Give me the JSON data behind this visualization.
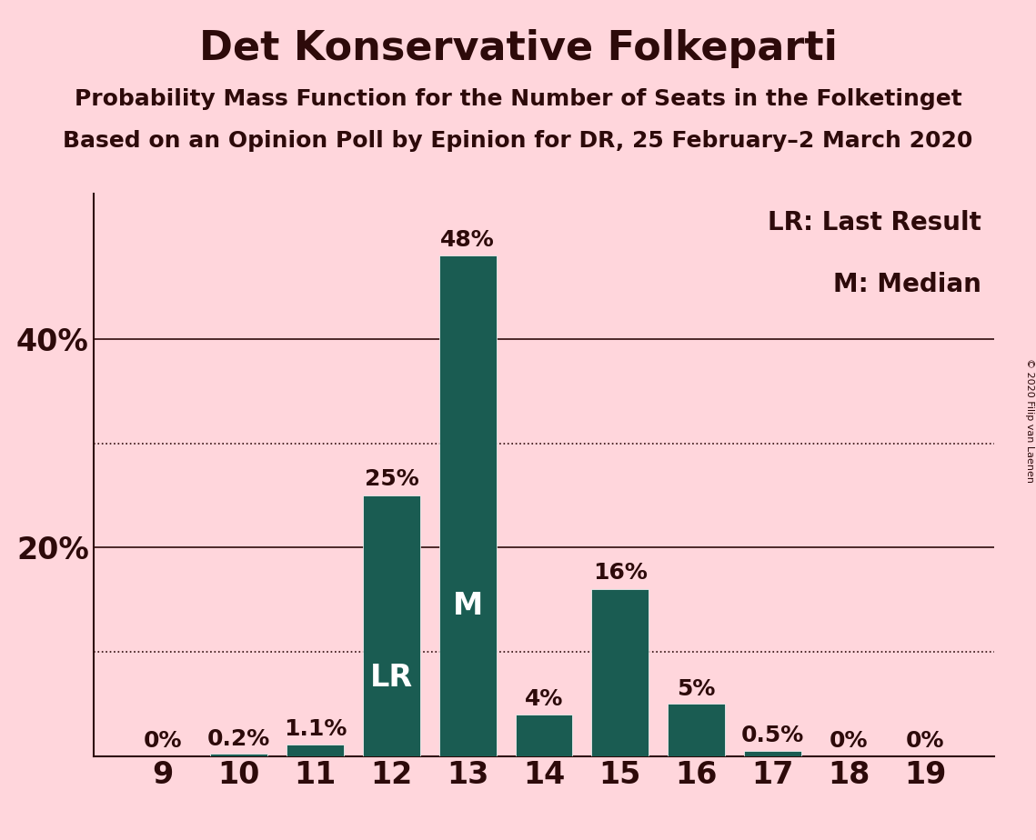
{
  "title": "Det Konservative Folkeparti",
  "subtitle1": "Probability Mass Function for the Number of Seats in the Folketinget",
  "subtitle2": "Based on an Opinion Poll by Epinion for DR, 25 February–2 March 2020",
  "copyright": "© 2020 Filip van Laenen",
  "categories": [
    9,
    10,
    11,
    12,
    13,
    14,
    15,
    16,
    17,
    18,
    19
  ],
  "values": [
    0.0,
    0.2,
    1.1,
    25.0,
    48.0,
    4.0,
    16.0,
    5.0,
    0.5,
    0.0,
    0.0
  ],
  "labels": [
    "0%",
    "0.2%",
    "1.1%",
    "25%",
    "48%",
    "4%",
    "16%",
    "5%",
    "0.5%",
    "0%",
    "0%"
  ],
  "bar_color": "#1a5c52",
  "bg_color": "#ffd6dc",
  "text_color": "#2d0a0a",
  "bar_annotations": {
    "12": "LR",
    "13": "M"
  },
  "legend_text": [
    "LR: Last Result",
    "M: Median"
  ],
  "yticks_solid": [
    20,
    40
  ],
  "yticks_dotted": [
    10,
    30
  ],
  "ylim": [
    0,
    54
  ],
  "figsize": [
    11.39,
    9.24
  ],
  "dpi": 100,
  "label_inside_threshold": 8,
  "label_fontsize": 18,
  "annotation_fontsize": 24,
  "title_fontsize": 32,
  "subtitle_fontsize": 18,
  "legend_fontsize": 20,
  "tick_fontsize": 24
}
